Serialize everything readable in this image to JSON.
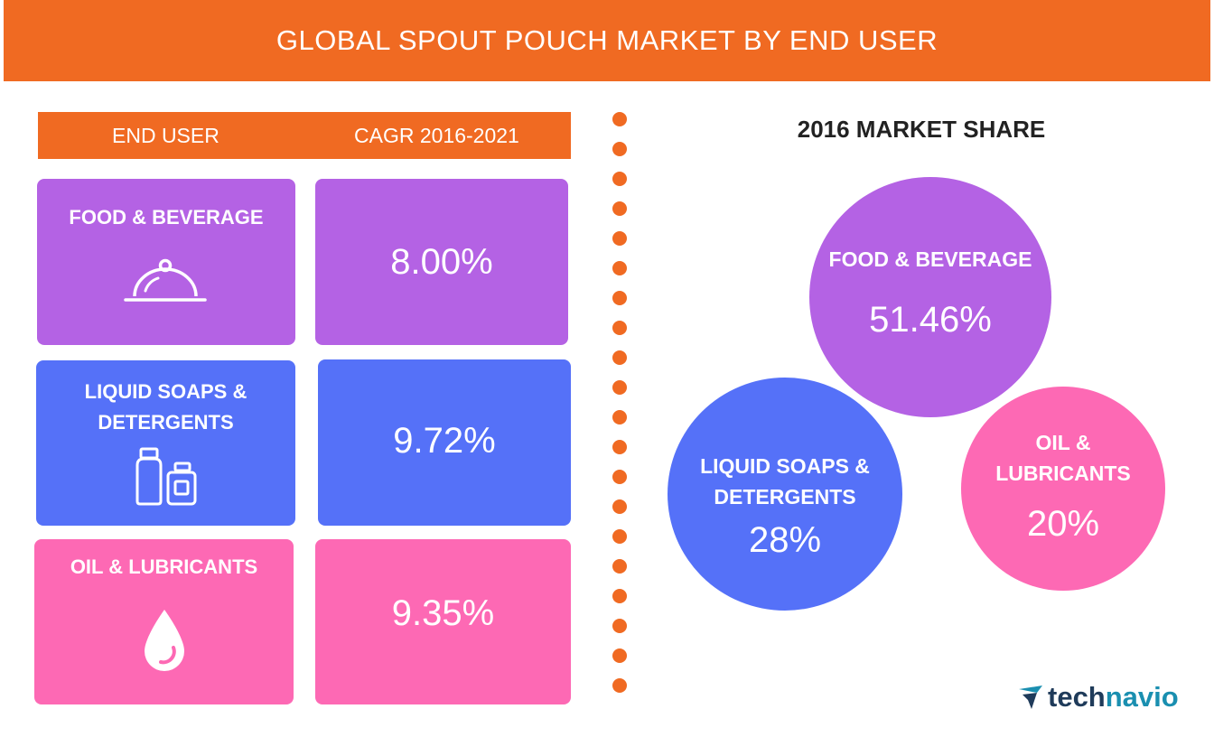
{
  "title": "GLOBAL SPOUT POUCH MARKET BY END USER",
  "table": {
    "col_end_user": "END USER",
    "col_cagr": "CAGR 2016-2021"
  },
  "market_share_title": "2016 MARKET SHARE",
  "brand": {
    "part1": "tech",
    "part2": "navio"
  },
  "colors": {
    "accent": "#f06a22",
    "food": "#b462e4",
    "soaps": "#5571f8",
    "oil": "#fd69b4"
  },
  "chart_data": [
    {
      "type": "table",
      "title": "GLOBAL SPOUT POUCH MARKET BY END USER",
      "columns": [
        "END USER",
        "CAGR 2016-2021"
      ],
      "rows": [
        {
          "label_line1": "FOOD & BEVERAGE",
          "label_line2": "",
          "display": "8.00%",
          "value": 8.0,
          "icon": "cloche-icon"
        },
        {
          "label_line1": "LIQUID SOAPS &",
          "label_line2": "DETERGENTS",
          "display": "9.72%",
          "value": 9.72,
          "icon": "bottles-icon"
        },
        {
          "label_line1": "OIL & LUBRICANTS",
          "label_line2": "",
          "display": "9.35%",
          "value": 9.35,
          "icon": "drop-icon"
        }
      ]
    },
    {
      "type": "pie",
      "title": "2016 MARKET SHARE",
      "slices": [
        {
          "label_line1": "FOOD & BEVERAGE",
          "label_line2": "",
          "display": "51.46%",
          "value": 51.46
        },
        {
          "label_line1": "LIQUID SOAPS &",
          "label_line2": "DETERGENTS",
          "display": "28%",
          "value": 28
        },
        {
          "label_line1": "OIL &",
          "label_line2": "LUBRICANTS",
          "display": "20%",
          "value": 20
        }
      ]
    }
  ]
}
